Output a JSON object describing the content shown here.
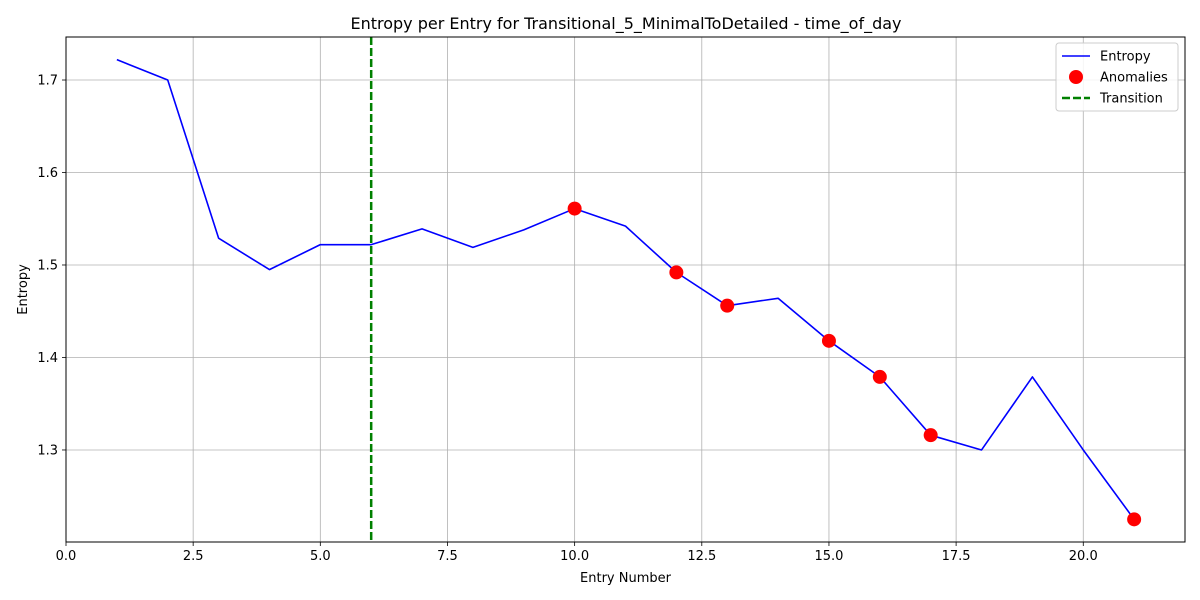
{
  "chart_data": {
    "type": "line",
    "title": "Entropy per Entry for Transitional_5_MinimalToDetailed - time_of_day",
    "xlabel": "Entry Number",
    "ylabel": "Entropy",
    "xlim": [
      0,
      22.0
    ],
    "ylim": [
      1.2005,
      1.7465
    ],
    "x_ticks": [
      0.0,
      2.5,
      5.0,
      7.5,
      10.0,
      12.5,
      15.0,
      17.5,
      20.0
    ],
    "x_tick_labels": [
      "0.0",
      "2.5",
      "5.0",
      "7.5",
      "10.0",
      "12.5",
      "15.0",
      "17.5",
      "20.0"
    ],
    "y_ticks": [
      1.3,
      1.4,
      1.5,
      1.6,
      1.7
    ],
    "y_tick_labels": [
      "1.3",
      "1.4",
      "1.5",
      "1.6",
      "1.7"
    ],
    "grid": true,
    "legend_position": "top-right",
    "series": [
      {
        "name": "Entropy",
        "kind": "line",
        "color": "#0000ff",
        "x": [
          1,
          2,
          3,
          4,
          5,
          6,
          7,
          8,
          9,
          10,
          11,
          12,
          13,
          14,
          15,
          16,
          17,
          18,
          19,
          20,
          21
        ],
        "y": [
          1.722,
          1.7,
          1.529,
          1.495,
          1.522,
          1.522,
          1.539,
          1.519,
          1.538,
          1.561,
          1.542,
          1.492,
          1.456,
          1.464,
          1.418,
          1.379,
          1.316,
          1.3,
          1.379,
          1.3,
          1.225
        ]
      },
      {
        "name": "Anomalies",
        "kind": "scatter",
        "color": "#ff0000",
        "x": [
          10,
          12,
          13,
          15,
          16,
          17,
          21
        ],
        "y": [
          1.561,
          1.492,
          1.456,
          1.418,
          1.379,
          1.316,
          1.225
        ]
      },
      {
        "name": "Transition",
        "kind": "vline",
        "color": "#008000",
        "x": 6
      }
    ]
  }
}
